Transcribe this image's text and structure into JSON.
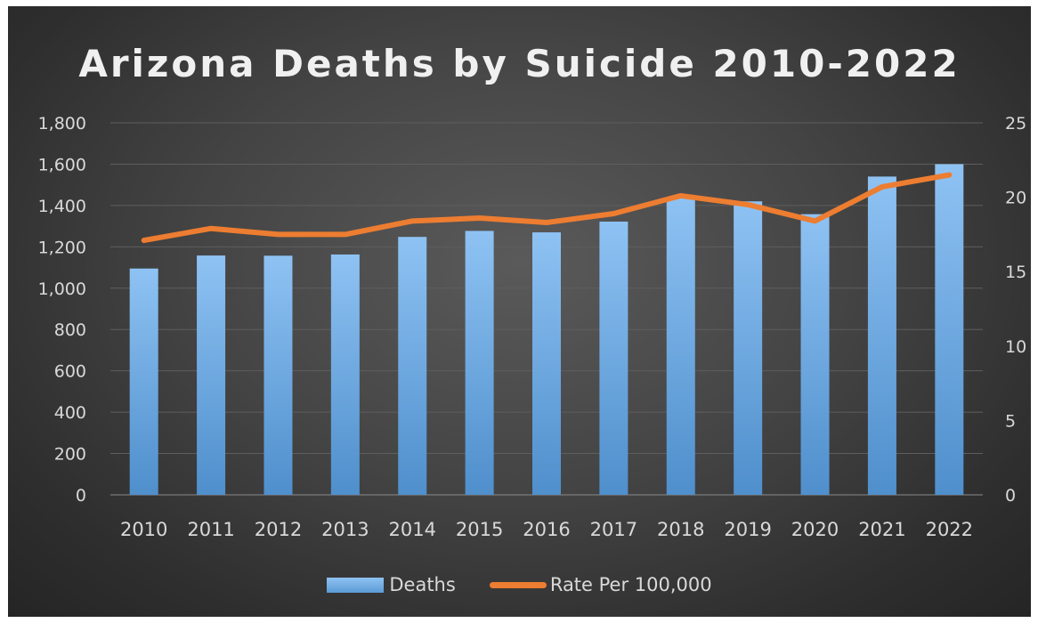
{
  "chart_data": {
    "type": "bar",
    "title": "Arizona Deaths by Suicide 2010-2022",
    "categories": [
      "2010",
      "2011",
      "2012",
      "2013",
      "2014",
      "2015",
      "2016",
      "2017",
      "2018",
      "2019",
      "2020",
      "2021",
      "2022"
    ],
    "series": [
      {
        "name": "Deaths",
        "type": "bar",
        "axis": "left",
        "color": "#5b9bd5",
        "values": [
          1095,
          1158,
          1157,
          1163,
          1248,
          1277,
          1270,
          1322,
          1440,
          1420,
          1358,
          1540,
          1600
        ]
      },
      {
        "name": "Rate Per 100,000",
        "type": "line",
        "axis": "right",
        "color": "#ed7d31",
        "values": [
          17.1,
          17.9,
          17.5,
          17.5,
          18.4,
          18.6,
          18.3,
          18.9,
          20.1,
          19.5,
          18.4,
          20.7,
          21.5
        ]
      }
    ],
    "y_left": {
      "ylim": [
        0,
        1800
      ],
      "ticks": [
        "0",
        "200",
        "400",
        "600",
        "800",
        "1,000",
        "1,200",
        "1,400",
        "1,600",
        "1,800"
      ]
    },
    "y_right": {
      "ylim": [
        0,
        25
      ],
      "ticks": [
        "0",
        "5",
        "10",
        "15",
        "20",
        "25"
      ]
    },
    "grid": true,
    "legend_position": "bottom"
  }
}
